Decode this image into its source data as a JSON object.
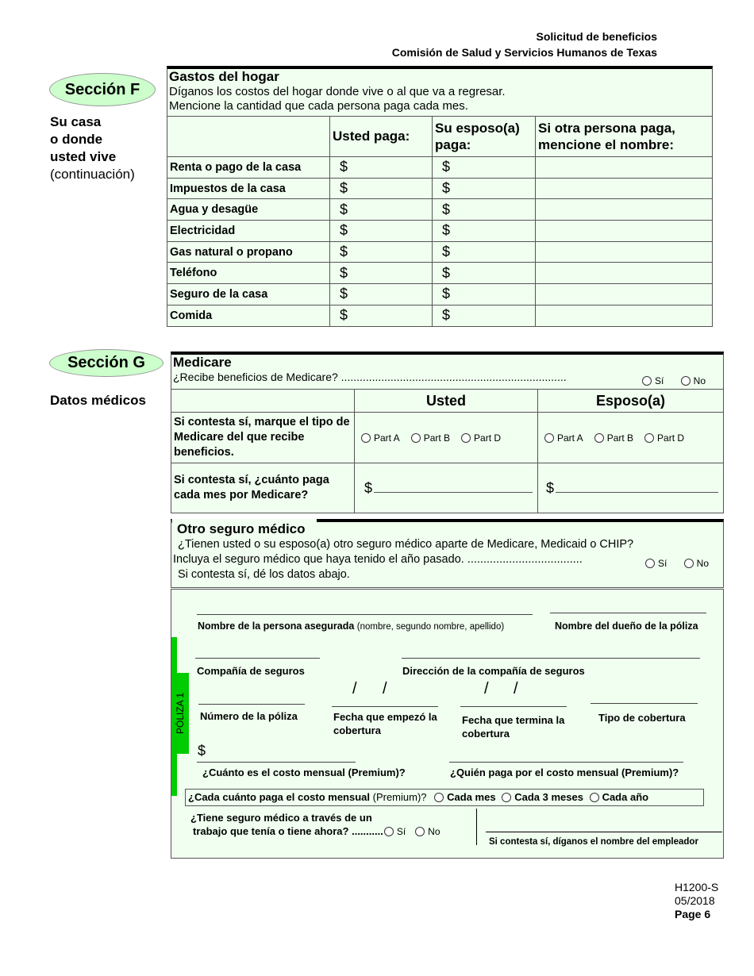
{
  "header": {
    "title": "Solicitud de beneficios",
    "agency": "Comisión de Salud y Servicios Humanos de Texas"
  },
  "section_f": {
    "badge": "Sección F",
    "side_lines": [
      "Su casa",
      "o donde",
      "usted vive"
    ],
    "side_note": "(continuación)",
    "title": "Gastos del hogar",
    "desc1": "Díganos los costos del hogar donde vive o al que va a regresar.",
    "desc2": "Mencione la cantidad que cada persona paga cada mes.",
    "columns": [
      "",
      "Usted paga:",
      "Su esposo(a) paga:",
      "Si otra persona paga, mencione el nombre:"
    ],
    "currency": "$",
    "rows": [
      "Renta o pago de la casa",
      "Impuestos de la casa",
      "Agua y desagüe",
      "Electricidad",
      "Gas natural o propano",
      "Teléfono",
      "Seguro de la casa",
      "Comida"
    ]
  },
  "section_g": {
    "badge": "Sección G",
    "side": "Datos médicos",
    "title": "Medicare",
    "question": "¿Recibe beneficios de Medicare? .........................................................................",
    "yes": "Sí",
    "no": "No",
    "col_usted": "Usted",
    "col_esposo": "Esposo(a)",
    "row_type": "Si contesta sí, marque el tipo de Medicare del que recibe beneficios.",
    "parts": [
      "Part A",
      "Part B",
      "Part D"
    ],
    "row_pay": "Si contesta sí, ¿cuánto paga cada mes por Medicare?",
    "currency": "$",
    "other": {
      "title": "Otro seguro médico",
      "q1": "¿Tienen usted o su esposo(a) otro seguro médico aparte de Medicare, Medicaid o CHIP?",
      "q2": "Incluya el seguro médico que haya tenido el año pasado. ....................................",
      "q3": "Si contesta sí, dé los datos abajo.",
      "yes": "Sí",
      "no": "No"
    },
    "policy": {
      "tab": "PÓLIZA 1",
      "insured_name": "Nombre de la persona asegurada",
      "insured_hint": "(nombre, segundo nombre, apellido)",
      "owner": "Nombre del dueño de la póliza",
      "company": "Compañía de seguros",
      "address": "Dirección de la compañía de seguros",
      "number": "Número de la póliza",
      "start": "Fecha que empezó la cobertura",
      "end": "Fecha que termina la cobertura",
      "type": "Tipo de cobertura",
      "slash": "/",
      "currency": "$",
      "cost": "¿Cuánto es el costo mensual (Premium)?",
      "payer": "¿Quién paga por el costo mensual (Premium)?",
      "freq_q": "¿Cada cuánto paga el costo mensual",
      "freq_hint": "(Premium)?",
      "freq": [
        "Cada mes",
        "Cada 3 meses",
        "Cada año"
      ],
      "job_q1": "¿Tiene seguro médico a través de un",
      "job_q2": "trabajo que tenía o tiene ahora? ...........",
      "yes": "Sí",
      "no": "No",
      "employer": "Si contesta sí, díganos el nombre del empleador"
    }
  },
  "footer": {
    "form": "H1200-S",
    "date": "05/2018",
    "page": "Page 6"
  }
}
